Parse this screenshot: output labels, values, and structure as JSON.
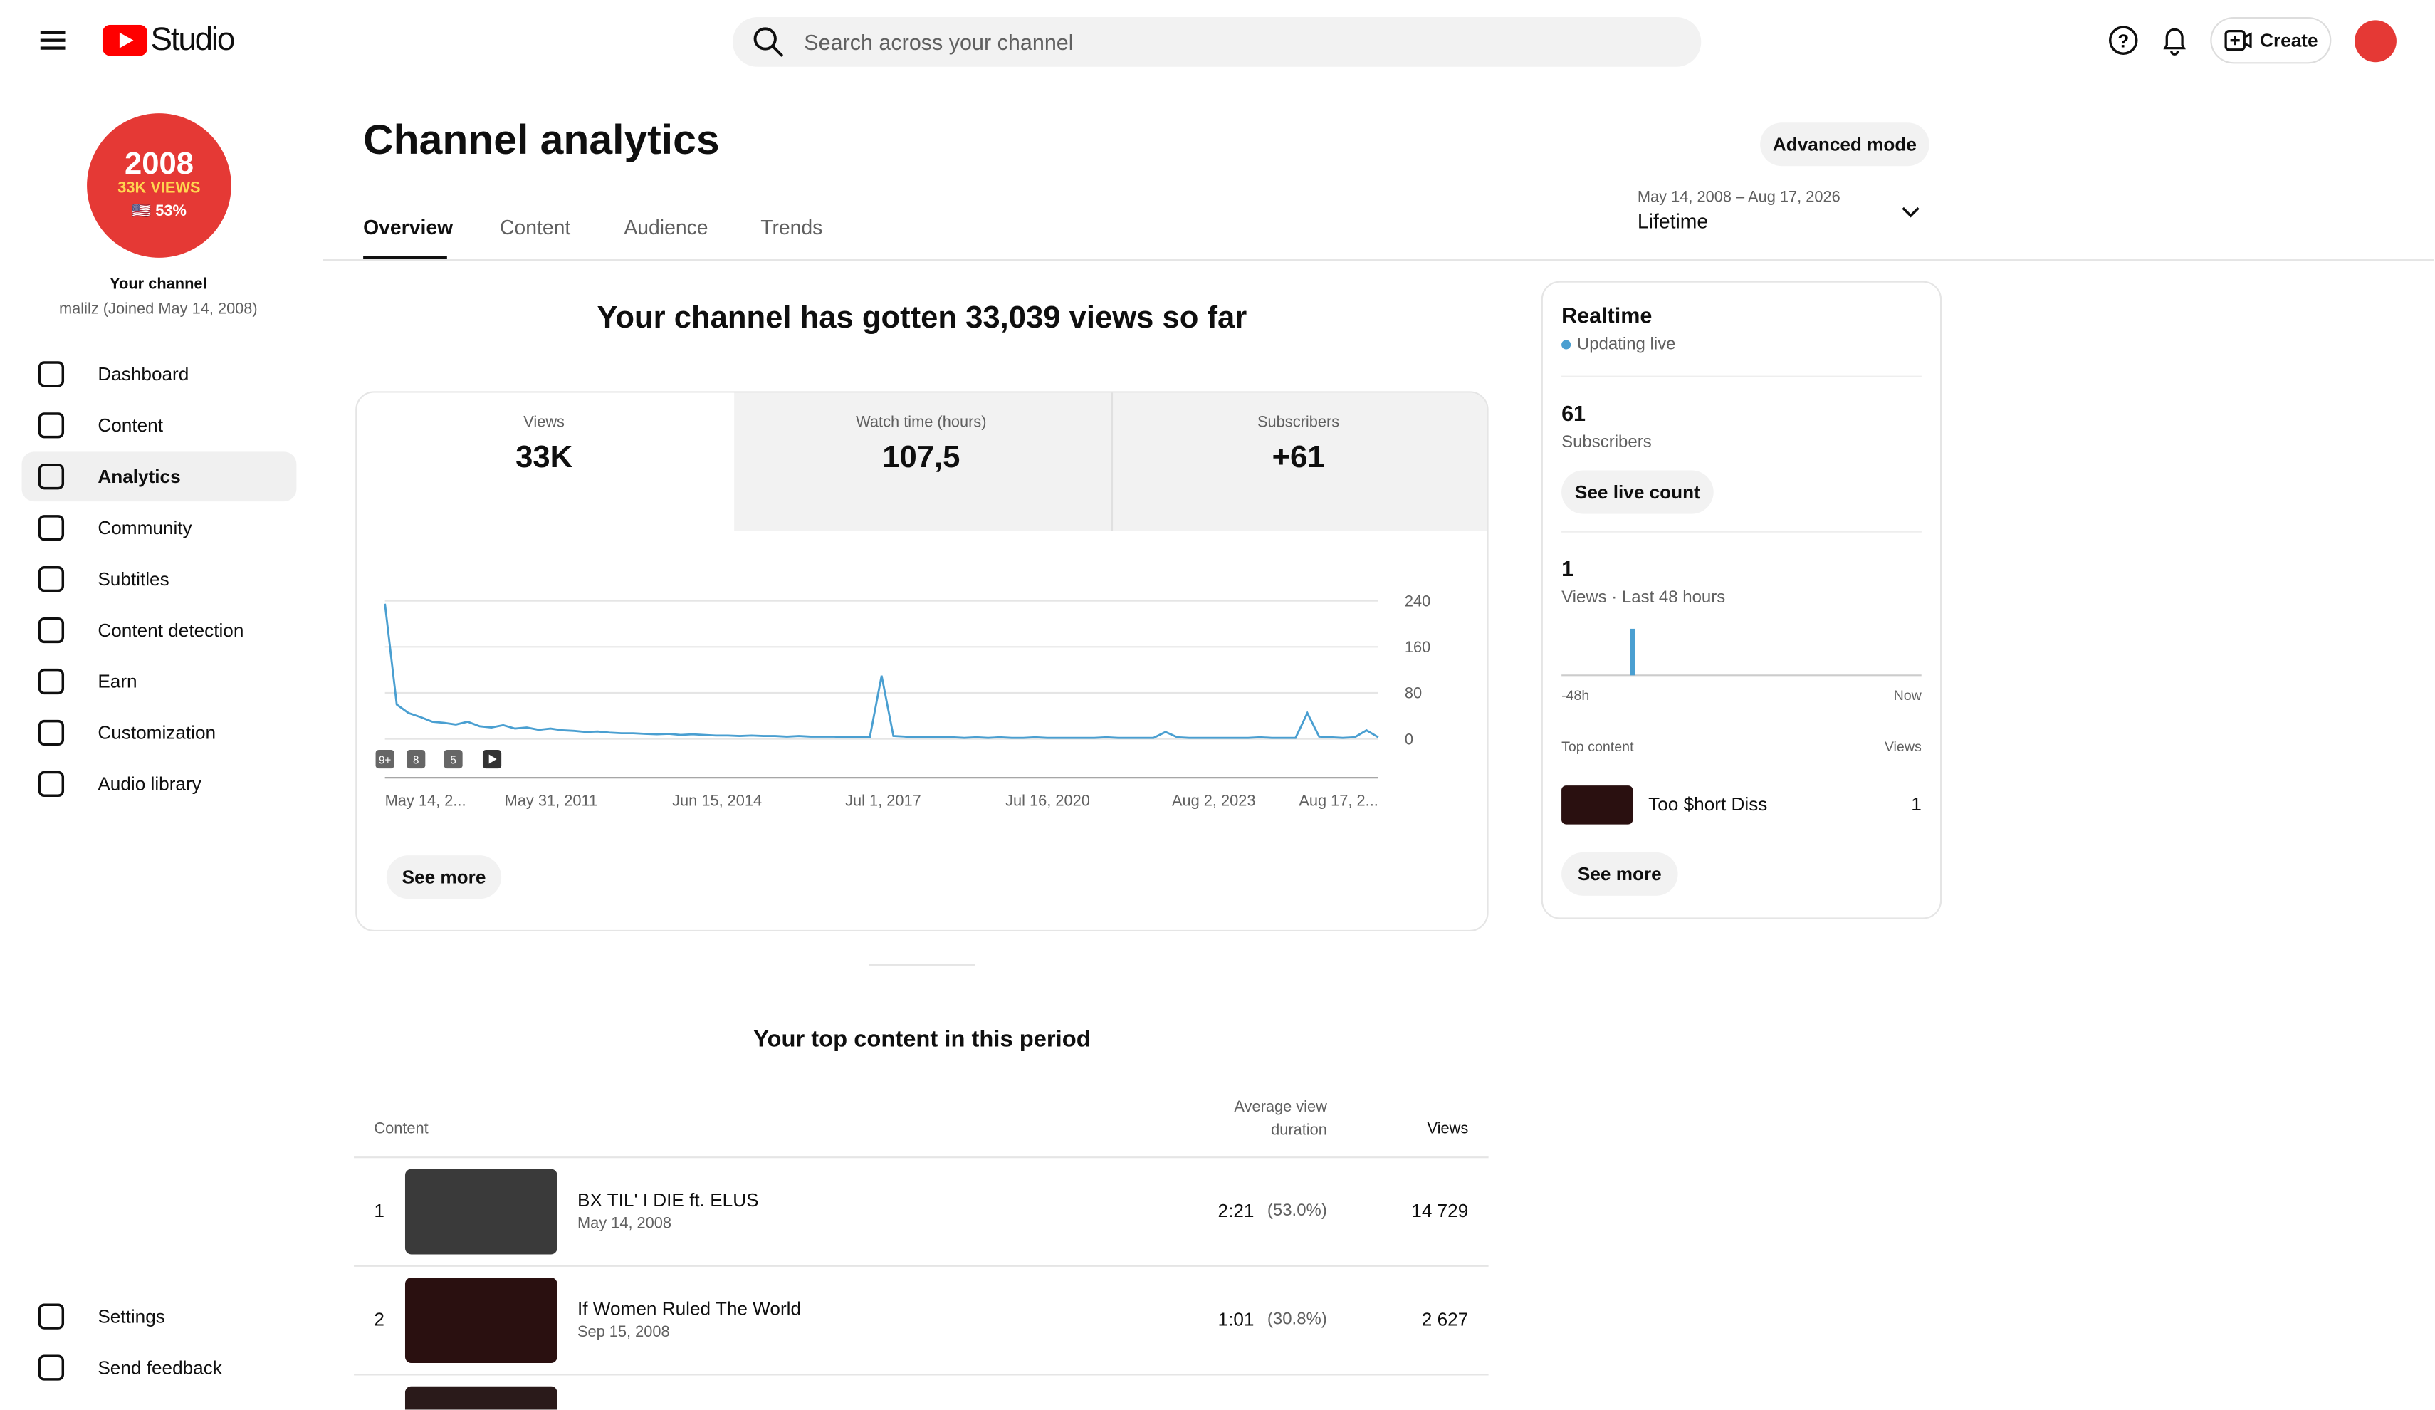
{
  "header": {
    "logo": "Studio",
    "search_placeholder": "Search across your channel",
    "create": "Create"
  },
  "sidebar": {
    "avatar_lines": [
      "2008",
      "33K VIEWS",
      "🇺🇸 53%"
    ],
    "channel_label": "Your channel",
    "channel_sub": "malilz (Joined May 14, 2008)",
    "items": [
      "Dashboard",
      "Content",
      "Analytics",
      "Community",
      "Subtitles",
      "Content detection",
      "Earn",
      "Customization",
      "Audio library"
    ],
    "bottom_items": [
      "Settings",
      "Send feedback"
    ]
  },
  "page": {
    "title": "Channel analytics",
    "advanced": "Advanced mode",
    "tabs": [
      "Overview",
      "Content",
      "Audience",
      "Trends"
    ],
    "date_range": "May 14, 2008 – Aug 17, 2026",
    "period": "Lifetime"
  },
  "summary": {
    "headline": "Your channel has gotten 33,039 views so far",
    "metrics": [
      {
        "label": "Views",
        "value": "33K"
      },
      {
        "label": "Watch time (hours)",
        "value": "107,5"
      },
      {
        "label": "Subscribers",
        "value": "+61"
      }
    ],
    "see_more": "See more"
  },
  "chart": {
    "type": "line",
    "ylim": [
      0,
      240
    ],
    "yticks": [
      0,
      80,
      160,
      240
    ],
    "color": "#4a9fd1",
    "x_labels": [
      "May 14, 2...",
      "May 31, 2011",
      "Jun 15, 2014",
      "Jul 1, 2017",
      "Jul 16, 2020",
      "Aug 2, 2023",
      "Aug 17, 2..."
    ],
    "badges": [
      "9+",
      "8",
      "5"
    ],
    "values": [
      235,
      60,
      45,
      38,
      30,
      28,
      25,
      30,
      22,
      20,
      24,
      18,
      20,
      16,
      18,
      15,
      14,
      12,
      13,
      11,
      10,
      10,
      9,
      8,
      9,
      7,
      8,
      7,
      6,
      6,
      5,
      6,
      5,
      5,
      4,
      5,
      4,
      4,
      4,
      3,
      4,
      3,
      110,
      5,
      4,
      3,
      3,
      3,
      3,
      2,
      3,
      2,
      3,
      2,
      2,
      3,
      2,
      2,
      2,
      2,
      2,
      3,
      2,
      2,
      2,
      2,
      12,
      3,
      2,
      2,
      2,
      2,
      2,
      2,
      3,
      2,
      2,
      2,
      45,
      4,
      3,
      2,
      3,
      15,
      3
    ]
  },
  "top_content": {
    "title": "Your top content in this period",
    "headers": [
      "Content",
      "Average view duration",
      "Views"
    ],
    "rows": [
      {
        "rank": 1,
        "title": "BX TIL' I DIE ft. ELUS",
        "date": "May 14, 2008",
        "duration": "2:21",
        "percent": "(53.0%)",
        "views": "14 729"
      },
      {
        "rank": 2,
        "title": "If Women Ruled The World",
        "date": "Sep 15, 2008",
        "duration": "1:01",
        "percent": "(30.8%)",
        "views": "2 627"
      }
    ]
  },
  "realtime": {
    "title": "Realtime",
    "status": "Updating live",
    "subscribers": "61",
    "subscribers_label": "Subscribers",
    "live_button": "See live count",
    "views": "1",
    "views_label": "Views · Last 48 hours",
    "chart": {
      "type": "bar",
      "color": "#4a9fd1",
      "values": [
        0,
        0,
        0,
        0,
        0,
        0,
        0,
        0,
        0,
        1,
        0,
        0,
        0,
        0,
        0,
        0,
        0,
        0,
        0,
        0,
        0,
        0,
        0,
        0,
        0,
        0,
        0,
        0,
        0,
        0,
        0,
        0,
        0,
        0,
        0,
        0,
        0,
        0,
        0,
        0,
        0,
        0,
        0,
        0,
        0,
        0,
        0,
        0
      ],
      "axis_labels": [
        "-48h",
        "Now"
      ]
    },
    "top_content_label": "Top content",
    "views_header": "Views",
    "items": [
      {
        "title": "Too $hort Diss",
        "views": "1"
      }
    ],
    "see_more": "See more"
  }
}
